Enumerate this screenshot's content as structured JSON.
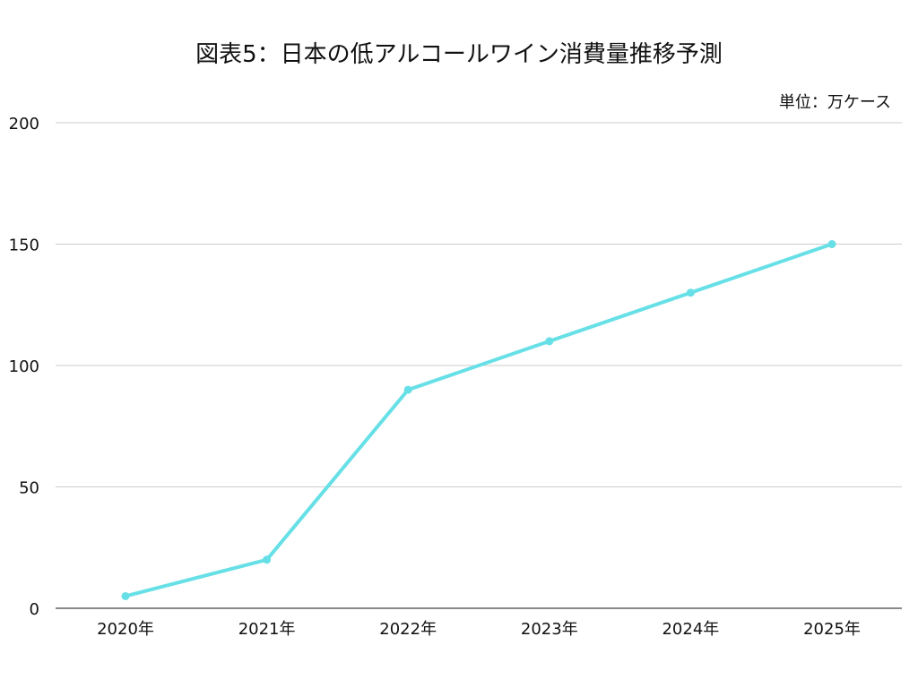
{
  "chart_data": {
    "type": "line",
    "title": "図表5：日本の低アルコールワイン消費量推移予測",
    "unit_label": "単位：万ケース",
    "categories": [
      "2020年",
      "2021年",
      "2022年",
      "2023年",
      "2024年",
      "2025年"
    ],
    "series": [
      {
        "values": [
          5,
          20,
          90,
          110,
          130,
          150
        ]
      }
    ],
    "ylim": [
      0,
      200
    ],
    "yticks": [
      0,
      50,
      100,
      150,
      200
    ],
    "grid": true,
    "legend": "none",
    "colors": {
      "line": "#66e0e6",
      "grid": "#cccccc",
      "axis": "#444444"
    }
  }
}
